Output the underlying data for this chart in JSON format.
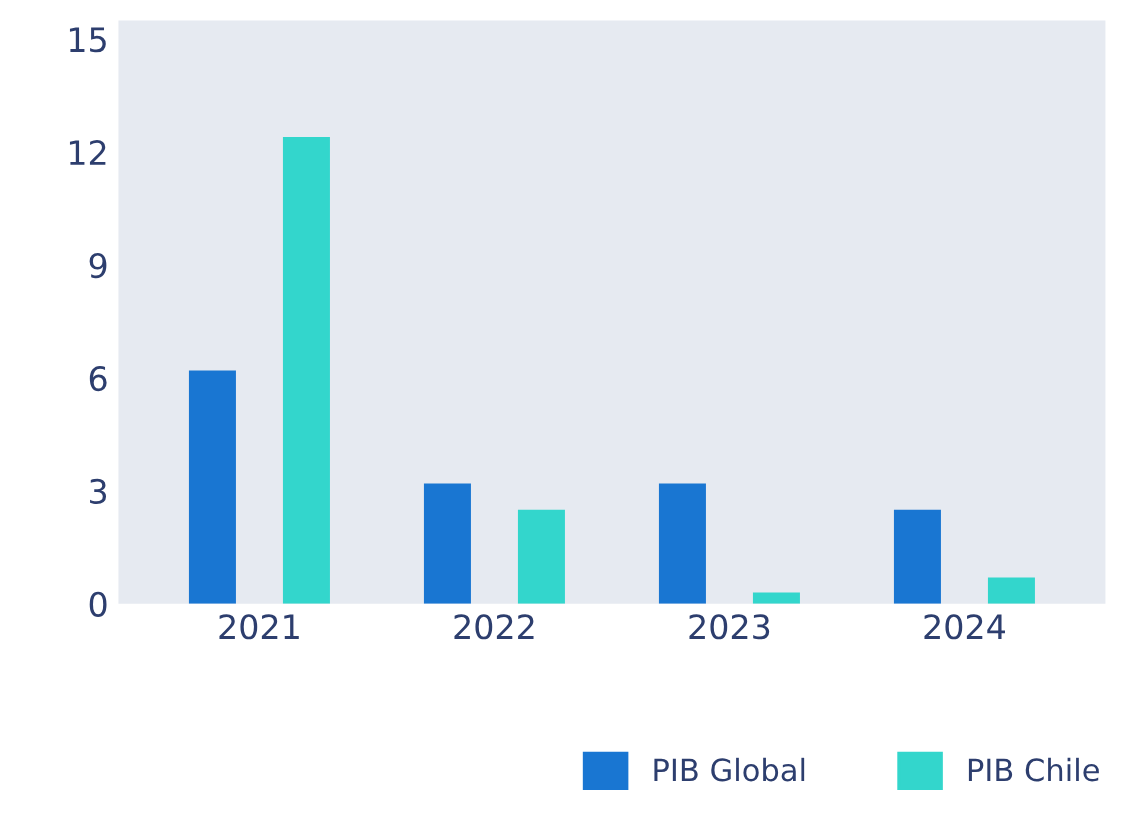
{
  "chart_data": {
    "type": "bar",
    "categories": [
      "2021",
      "2022",
      "2023",
      "2024"
    ],
    "series": [
      {
        "name": "PIB Global",
        "color": "#1976d2",
        "values": [
          6.2,
          3.2,
          3.2,
          2.5
        ]
      },
      {
        "name": "PIB Chile",
        "color": "#33d6cc",
        "values": [
          12.4,
          2.5,
          0.3,
          0.7
        ]
      }
    ],
    "ylim": [
      0,
      15.5
    ],
    "yticks": [
      0,
      3,
      6,
      9,
      12,
      15
    ],
    "grid": false,
    "legend": "bottom right"
  }
}
